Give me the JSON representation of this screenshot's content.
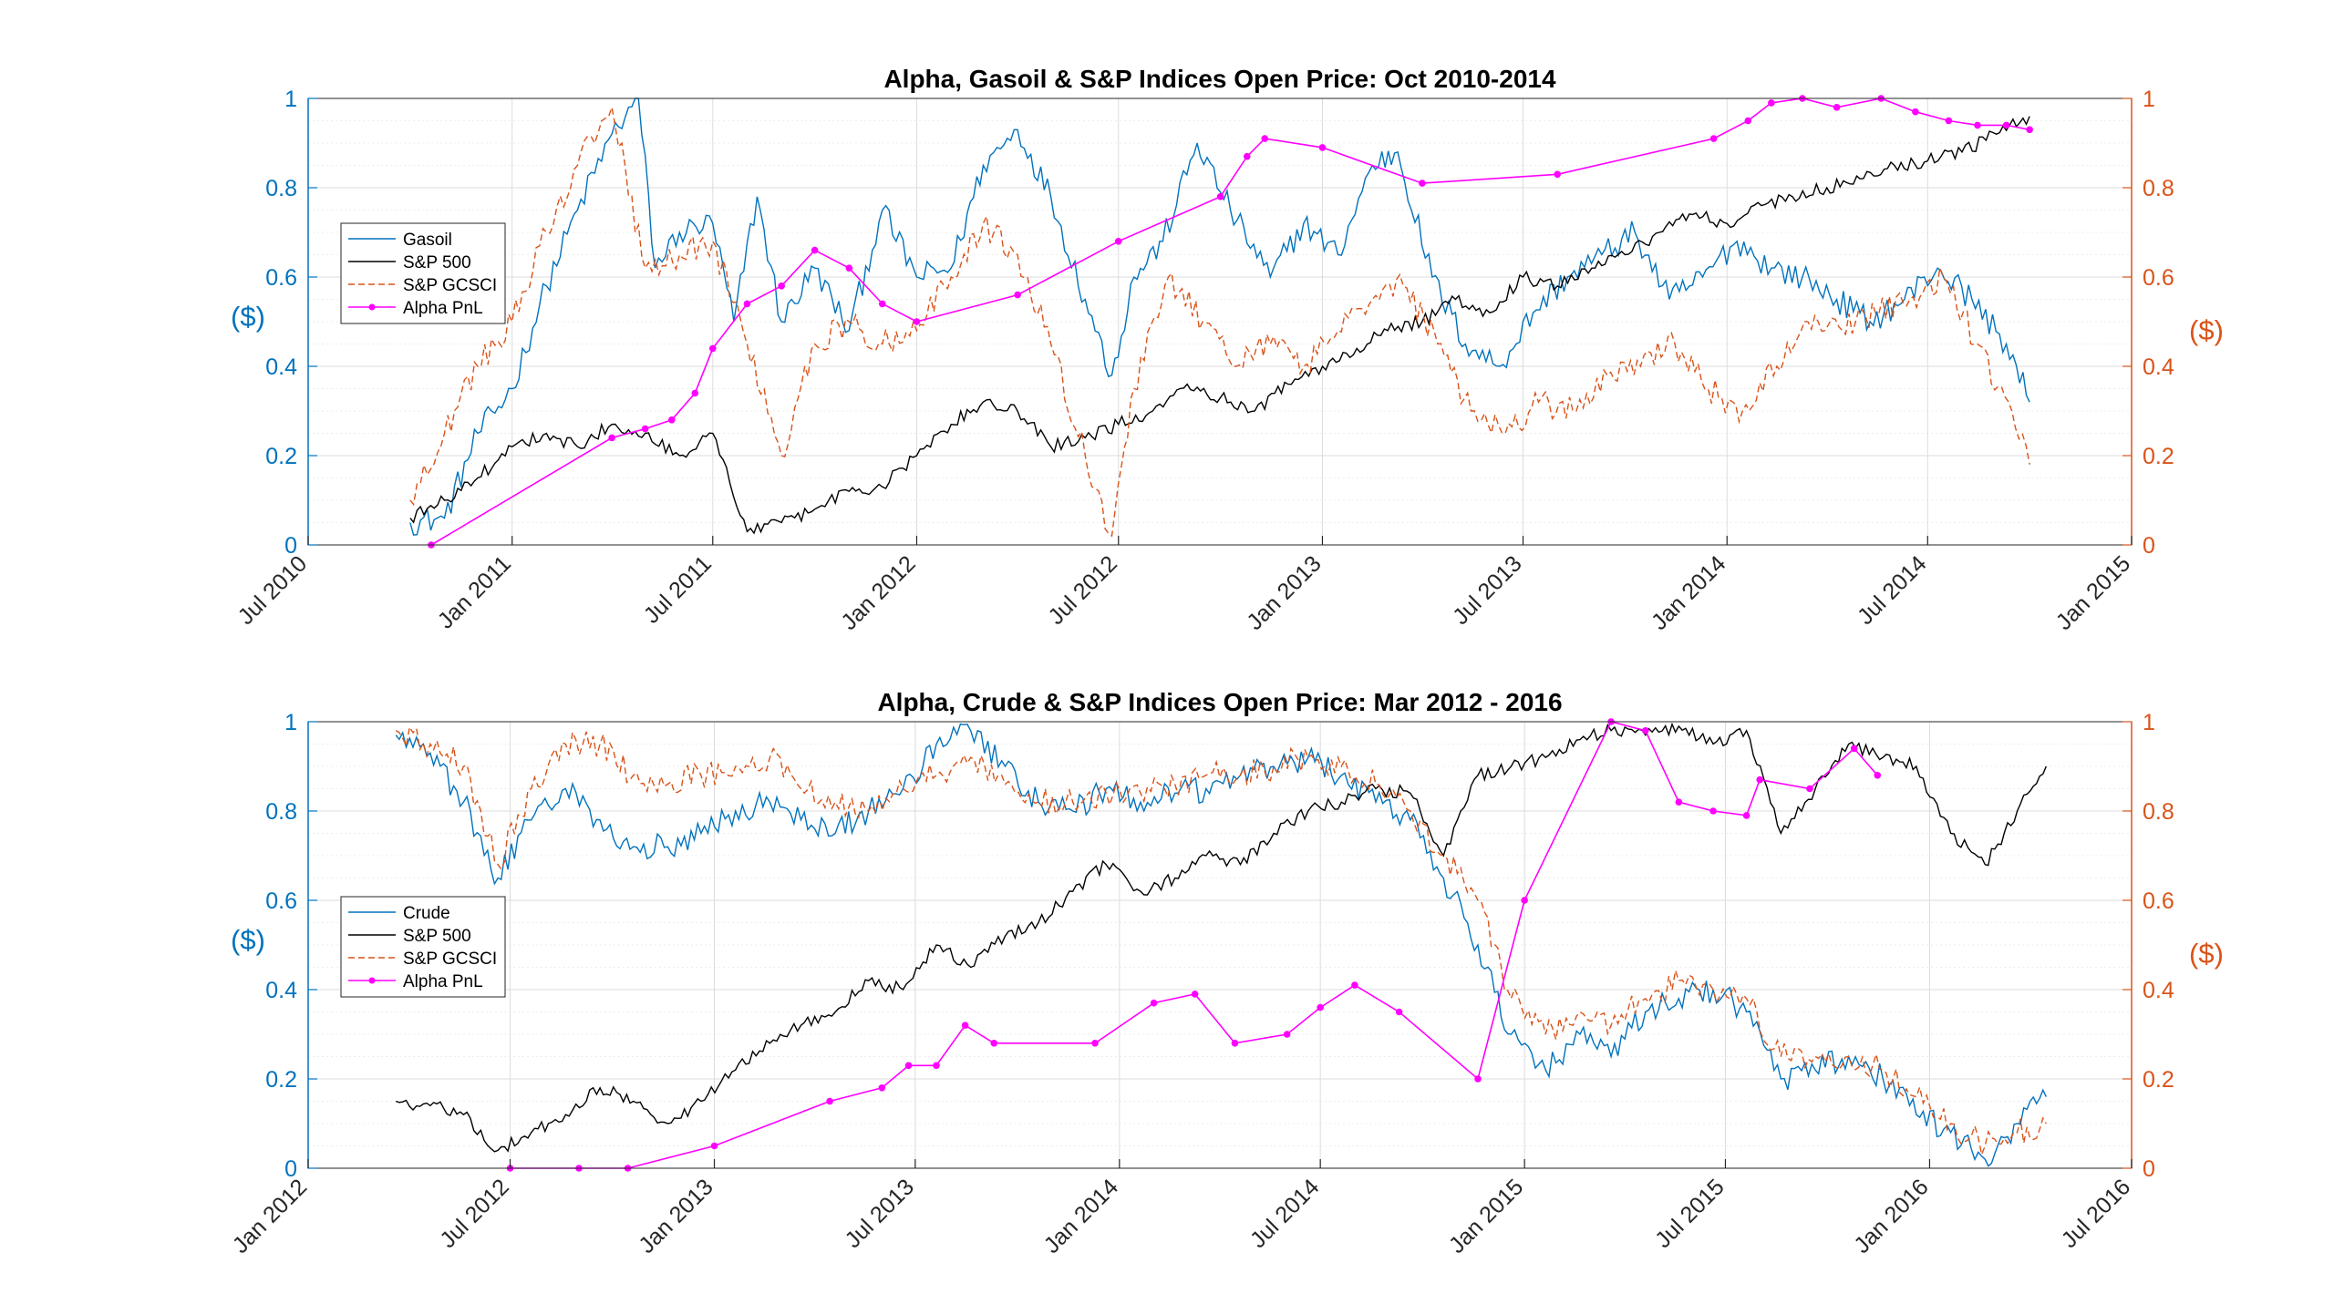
{
  "chart_data": [
    {
      "type": "line",
      "title": "Alpha, Gasoil & S&P Indices Open Price: Oct 2010-2014",
      "ylabel_left": "($)",
      "ylabel_right": "($)",
      "xlim": [
        "2010-07-01",
        "2015-01-01"
      ],
      "xticks": [
        "Jul 2010",
        "Jan 2011",
        "Jul 2011",
        "Jan 2012",
        "Jul 2012",
        "Jan 2013",
        "Jul 2013",
        "Jan 2014",
        "Jul 2014",
        "Jan 2015"
      ],
      "ylim_left": [
        0,
        1
      ],
      "ylim_right": [
        0,
        1
      ],
      "yticks_left": [
        "0",
        "0.2",
        "0.4",
        "0.6",
        "0.8",
        "1"
      ],
      "yticks_right": [
        "0",
        "0.2",
        "0.4",
        "0.6",
        "0.8",
        "1"
      ],
      "grid": "on",
      "legend_placement": "left",
      "legend": [
        "Gasoil",
        "S&P 500",
        "S&P GCSCI",
        "Alpha PnL"
      ],
      "series": [
        {
          "name": "Gasoil",
          "axis": "left",
          "color": "#0072BD",
          "style": "solid",
          "x": [
            "2010-10-01",
            "2010-11-01",
            "2010-12-01",
            "2011-01-01",
            "2011-02-01",
            "2011-03-01",
            "2011-04-01",
            "2011-04-25",
            "2011-05-10",
            "2011-06-01",
            "2011-07-01",
            "2011-07-20",
            "2011-08-10",
            "2011-09-01",
            "2011-10-01",
            "2011-11-01",
            "2011-12-01",
            "2012-01-01",
            "2012-02-01",
            "2012-03-01",
            "2012-04-01",
            "2012-05-01",
            "2012-06-01",
            "2012-06-25",
            "2012-07-15",
            "2012-08-10",
            "2012-09-10",
            "2012-10-10",
            "2012-11-15",
            "2012-12-15",
            "2013-01-15",
            "2013-02-15",
            "2013-03-10",
            "2013-04-10",
            "2013-05-10",
            "2013-06-10",
            "2013-07-10",
            "2013-08-10",
            "2013-09-10",
            "2013-10-10",
            "2013-11-10",
            "2013-12-10",
            "2014-01-10",
            "2014-02-10",
            "2014-03-10",
            "2014-04-10",
            "2014-05-10",
            "2014-06-10",
            "2014-07-10",
            "2014-08-10",
            "2014-09-10",
            "2014-10-01"
          ],
          "y": [
            0.05,
            0.06,
            0.25,
            0.35,
            0.58,
            0.75,
            0.92,
            1.0,
            0.62,
            0.7,
            0.72,
            0.5,
            0.78,
            0.5,
            0.62,
            0.48,
            0.75,
            0.6,
            0.62,
            0.85,
            0.93,
            0.78,
            0.55,
            0.38,
            0.6,
            0.68,
            0.9,
            0.75,
            0.6,
            0.72,
            0.65,
            0.85,
            0.88,
            0.6,
            0.45,
            0.4,
            0.52,
            0.6,
            0.65,
            0.7,
            0.55,
            0.6,
            0.68,
            0.62,
            0.6,
            0.55,
            0.5,
            0.55,
            0.62,
            0.55,
            0.45,
            0.32
          ]
        },
        {
          "name": "S&P 500",
          "axis": "left",
          "color": "#000000",
          "style": "solid",
          "x": [
            "2010-10-01",
            "2010-11-01",
            "2010-12-01",
            "2011-01-01",
            "2011-02-01",
            "2011-03-01",
            "2011-04-01",
            "2011-05-01",
            "2011-06-01",
            "2011-07-01",
            "2011-08-01",
            "2011-09-01",
            "2011-10-01",
            "2011-11-01",
            "2011-12-01",
            "2012-01-01",
            "2012-02-01",
            "2012-03-01",
            "2012-04-01",
            "2012-05-01",
            "2012-06-01",
            "2012-07-01",
            "2012-08-01",
            "2012-09-01",
            "2012-10-01",
            "2012-11-01",
            "2012-12-01",
            "2013-01-01",
            "2013-02-01",
            "2013-03-01",
            "2013-04-01",
            "2013-05-01",
            "2013-06-01",
            "2013-07-01",
            "2013-08-01",
            "2013-09-01",
            "2013-10-01",
            "2013-11-01",
            "2013-12-01",
            "2014-01-01",
            "2014-02-01",
            "2014-03-01",
            "2014-04-01",
            "2014-05-01",
            "2014-06-01",
            "2014-07-01",
            "2014-08-01",
            "2014-09-01",
            "2014-10-01"
          ],
          "y": [
            0.06,
            0.1,
            0.15,
            0.22,
            0.25,
            0.22,
            0.27,
            0.25,
            0.2,
            0.25,
            0.03,
            0.05,
            0.08,
            0.12,
            0.13,
            0.2,
            0.27,
            0.32,
            0.3,
            0.22,
            0.24,
            0.27,
            0.3,
            0.36,
            0.33,
            0.3,
            0.36,
            0.4,
            0.44,
            0.48,
            0.5,
            0.55,
            0.52,
            0.6,
            0.58,
            0.62,
            0.65,
            0.7,
            0.74,
            0.72,
            0.76,
            0.78,
            0.8,
            0.82,
            0.85,
            0.86,
            0.88,
            0.92,
            0.96
          ]
        },
        {
          "name": "S&P GCSCI",
          "axis": "right",
          "color": "#D95319",
          "style": "dashed",
          "x": [
            "2010-10-01",
            "2010-11-01",
            "2010-12-01",
            "2011-01-01",
            "2011-02-01",
            "2011-03-01",
            "2011-04-01",
            "2011-05-01",
            "2011-06-01",
            "2011-07-01",
            "2011-08-01",
            "2011-09-01",
            "2011-10-01",
            "2011-11-01",
            "2011-12-01",
            "2012-01-01",
            "2012-02-01",
            "2012-03-01",
            "2012-04-01",
            "2012-05-01",
            "2012-06-01",
            "2012-06-25",
            "2012-07-15",
            "2012-08-15",
            "2012-09-15",
            "2012-10-15",
            "2012-11-15",
            "2012-12-15",
            "2013-01-15",
            "2013-02-15",
            "2013-03-15",
            "2013-04-15",
            "2013-05-15",
            "2013-06-15",
            "2013-07-15",
            "2013-08-15",
            "2013-09-15",
            "2013-10-15",
            "2013-11-15",
            "2013-12-15",
            "2014-01-15",
            "2014-02-15",
            "2014-03-15",
            "2014-04-15",
            "2014-05-15",
            "2014-06-15",
            "2014-07-15",
            "2014-08-15",
            "2014-09-15",
            "2014-10-01"
          ],
          "y": [
            0.1,
            0.25,
            0.4,
            0.5,
            0.7,
            0.85,
            0.98,
            0.62,
            0.65,
            0.68,
            0.45,
            0.2,
            0.45,
            0.5,
            0.45,
            0.48,
            0.6,
            0.72,
            0.65,
            0.45,
            0.2,
            0.02,
            0.35,
            0.6,
            0.5,
            0.4,
            0.45,
            0.4,
            0.48,
            0.55,
            0.58,
            0.45,
            0.3,
            0.25,
            0.32,
            0.3,
            0.38,
            0.4,
            0.45,
            0.35,
            0.3,
            0.4,
            0.5,
            0.48,
            0.52,
            0.55,
            0.6,
            0.45,
            0.3,
            0.18
          ]
        },
        {
          "name": "Alpha PnL",
          "axis": "right",
          "color": "#FF00FF",
          "style": "solid-markers",
          "x": [
            "2010-10-20",
            "2011-04-01",
            "2011-05-01",
            "2011-05-25",
            "2011-06-15",
            "2011-07-01",
            "2011-08-01",
            "2011-09-01",
            "2011-10-01",
            "2011-11-01",
            "2011-12-01",
            "2012-01-01",
            "2012-04-01",
            "2012-07-01",
            "2012-10-01",
            "2012-10-25",
            "2012-11-10",
            "2013-01-01",
            "2013-04-01",
            "2013-08-01",
            "2013-12-20",
            "2014-01-20",
            "2014-02-10",
            "2014-03-10",
            "2014-04-10",
            "2014-05-20",
            "2014-06-20",
            "2014-07-20",
            "2014-08-15",
            "2014-09-10",
            "2014-10-01"
          ],
          "y": [
            0.0,
            0.24,
            0.26,
            0.28,
            0.34,
            0.44,
            0.54,
            0.58,
            0.66,
            0.62,
            0.54,
            0.5,
            0.56,
            0.68,
            0.78,
            0.87,
            0.91,
            0.89,
            0.81,
            0.83,
            0.91,
            0.95,
            0.99,
            1.0,
            0.98,
            1.0,
            0.97,
            0.95,
            0.94,
            0.94,
            0.93
          ]
        }
      ]
    },
    {
      "type": "line",
      "title": "Alpha, Crude & S&P Indices Open Price: Mar 2012 - 2016",
      "ylabel_left": "($)",
      "ylabel_right": "($)",
      "xlim": [
        "2012-01-01",
        "2016-07-01"
      ],
      "xticks": [
        "Jan 2012",
        "Jul 2012",
        "Jan 2013",
        "Jul 2013",
        "Jan 2014",
        "Jul 2014",
        "Jan 2015",
        "Jul 2015",
        "Jan 2016",
        "Jul 2016"
      ],
      "ylim_left": [
        0,
        1
      ],
      "ylim_right": [
        0,
        1
      ],
      "yticks_left": [
        "0",
        "0.2",
        "0.4",
        "0.6",
        "0.8",
        "1"
      ],
      "yticks_right": [
        "0",
        "0.2",
        "0.4",
        "0.6",
        "0.8",
        "1"
      ],
      "grid": "on",
      "legend_placement": "left",
      "legend": [
        "Crude",
        "S&P 500",
        "S&P GCSCI",
        "Alpha PnL"
      ],
      "series": [
        {
          "name": "Crude",
          "axis": "left",
          "color": "#0072BD",
          "style": "solid",
          "x": [
            "2012-03-20",
            "2012-04-20",
            "2012-05-20",
            "2012-06-20",
            "2012-07-20",
            "2012-08-20",
            "2012-09-20",
            "2012-10-20",
            "2012-11-20",
            "2012-12-20",
            "2013-01-20",
            "2013-02-20",
            "2013-03-20",
            "2013-04-20",
            "2013-05-20",
            "2013-06-20",
            "2013-07-20",
            "2013-08-20",
            "2013-09-20",
            "2013-10-20",
            "2013-11-20",
            "2013-12-20",
            "2014-01-20",
            "2014-02-20",
            "2014-03-20",
            "2014-04-20",
            "2014-05-20",
            "2014-06-20",
            "2014-07-20",
            "2014-08-20",
            "2014-09-20",
            "2014-10-20",
            "2014-11-20",
            "2014-12-20",
            "2015-01-20",
            "2015-02-20",
            "2015-03-20",
            "2015-04-20",
            "2015-05-20",
            "2015-06-20",
            "2015-07-20",
            "2015-08-20",
            "2015-09-20",
            "2015-10-20",
            "2015-11-20",
            "2015-12-20",
            "2016-01-20",
            "2016-02-20",
            "2016-03-20",
            "2016-04-15"
          ],
          "y": [
            0.97,
            0.93,
            0.82,
            0.65,
            0.78,
            0.85,
            0.78,
            0.72,
            0.72,
            0.75,
            0.8,
            0.82,
            0.78,
            0.75,
            0.8,
            0.85,
            0.95,
            0.98,
            0.9,
            0.82,
            0.8,
            0.85,
            0.82,
            0.84,
            0.85,
            0.88,
            0.9,
            0.92,
            0.88,
            0.82,
            0.78,
            0.65,
            0.5,
            0.3,
            0.22,
            0.3,
            0.25,
            0.35,
            0.38,
            0.4,
            0.35,
            0.2,
            0.22,
            0.25,
            0.2,
            0.12,
            0.08,
            0.02,
            0.1,
            0.16
          ]
        },
        {
          "name": "S&P 500",
          "axis": "left",
          "color": "#000000",
          "style": "solid",
          "x": [
            "2012-03-20",
            "2012-04-20",
            "2012-05-20",
            "2012-06-20",
            "2012-07-20",
            "2012-08-20",
            "2012-09-20",
            "2012-10-20",
            "2012-11-20",
            "2012-12-20",
            "2013-01-20",
            "2013-02-20",
            "2013-03-20",
            "2013-04-20",
            "2013-05-20",
            "2013-06-20",
            "2013-07-20",
            "2013-08-20",
            "2013-09-20",
            "2013-10-20",
            "2013-11-20",
            "2013-12-20",
            "2014-01-20",
            "2014-02-20",
            "2014-03-20",
            "2014-04-20",
            "2014-05-20",
            "2014-06-20",
            "2014-07-20",
            "2014-08-20",
            "2014-09-20",
            "2014-10-20",
            "2014-11-20",
            "2014-12-20",
            "2015-01-20",
            "2015-02-20",
            "2015-03-20",
            "2015-04-20",
            "2015-05-20",
            "2015-06-20",
            "2015-07-20",
            "2015-08-20",
            "2015-09-20",
            "2015-10-20",
            "2015-11-20",
            "2015-12-20",
            "2016-01-20",
            "2016-02-20",
            "2016-03-20",
            "2016-04-15"
          ],
          "y": [
            0.15,
            0.14,
            0.12,
            0.04,
            0.08,
            0.12,
            0.18,
            0.15,
            0.1,
            0.15,
            0.22,
            0.28,
            0.32,
            0.35,
            0.42,
            0.4,
            0.5,
            0.45,
            0.52,
            0.55,
            0.62,
            0.68,
            0.62,
            0.65,
            0.7,
            0.68,
            0.75,
            0.8,
            0.82,
            0.85,
            0.84,
            0.7,
            0.88,
            0.9,
            0.92,
            0.96,
            0.98,
            0.97,
            0.99,
            0.95,
            0.98,
            0.75,
            0.85,
            0.95,
            0.92,
            0.9,
            0.75,
            0.68,
            0.8,
            0.9
          ]
        },
        {
          "name": "S&P GCSCI",
          "axis": "right",
          "color": "#D95319",
          "style": "dashed",
          "x": [
            "2012-03-20",
            "2012-04-20",
            "2012-05-20",
            "2012-06-20",
            "2012-07-20",
            "2012-08-20",
            "2012-09-20",
            "2012-10-20",
            "2012-11-20",
            "2012-12-20",
            "2013-01-20",
            "2013-02-20",
            "2013-03-20",
            "2013-04-20",
            "2013-05-20",
            "2013-06-20",
            "2013-07-20",
            "2013-08-20",
            "2013-09-20",
            "2013-10-20",
            "2013-11-20",
            "2013-12-20",
            "2014-01-20",
            "2014-02-20",
            "2014-03-20",
            "2014-04-20",
            "2014-05-20",
            "2014-06-20",
            "2014-07-20",
            "2014-08-20",
            "2014-09-20",
            "2014-10-20",
            "2014-11-20",
            "2014-12-20",
            "2015-01-20",
            "2015-02-20",
            "2015-03-20",
            "2015-04-20",
            "2015-05-20",
            "2015-06-20",
            "2015-07-20",
            "2015-08-20",
            "2015-09-20",
            "2015-10-20",
            "2015-11-20",
            "2015-12-20",
            "2016-01-20",
            "2016-02-20",
            "2016-03-20",
            "2016-04-15"
          ],
          "y": [
            0.98,
            0.95,
            0.9,
            0.68,
            0.85,
            0.95,
            0.95,
            0.88,
            0.86,
            0.88,
            0.9,
            0.92,
            0.85,
            0.82,
            0.8,
            0.85,
            0.88,
            0.92,
            0.86,
            0.82,
            0.82,
            0.84,
            0.84,
            0.86,
            0.88,
            0.88,
            0.9,
            0.92,
            0.9,
            0.86,
            0.8,
            0.7,
            0.6,
            0.38,
            0.3,
            0.35,
            0.32,
            0.38,
            0.42,
            0.4,
            0.38,
            0.25,
            0.25,
            0.25,
            0.22,
            0.16,
            0.1,
            0.05,
            0.08,
            0.1
          ]
        },
        {
          "name": "Alpha PnL",
          "axis": "right",
          "color": "#FF00FF",
          "style": "solid-markers",
          "x": [
            "2012-07-01",
            "2012-09-01",
            "2012-10-15",
            "2013-01-01",
            "2013-04-15",
            "2013-06-01",
            "2013-06-25",
            "2013-07-20",
            "2013-08-15",
            "2013-09-10",
            "2013-12-10",
            "2014-02-01",
            "2014-03-10",
            "2014-04-15",
            "2014-06-01",
            "2014-07-01",
            "2014-08-01",
            "2014-09-10",
            "2014-11-20",
            "2015-01-01",
            "2015-03-20",
            "2015-04-20",
            "2015-05-20",
            "2015-06-20",
            "2015-07-20",
            "2015-08-01",
            "2015-09-15",
            "2015-10-25",
            "2015-11-15"
          ],
          "y": [
            0.0,
            0.0,
            0.0,
            0.05,
            0.15,
            0.18,
            0.23,
            0.23,
            0.32,
            0.28,
            0.28,
            0.37,
            0.39,
            0.28,
            0.3,
            0.36,
            0.41,
            0.35,
            0.2,
            0.6,
            1.0,
            0.98,
            0.82,
            0.8,
            0.79,
            0.87,
            0.85,
            0.94,
            0.88
          ]
        }
      ]
    }
  ]
}
